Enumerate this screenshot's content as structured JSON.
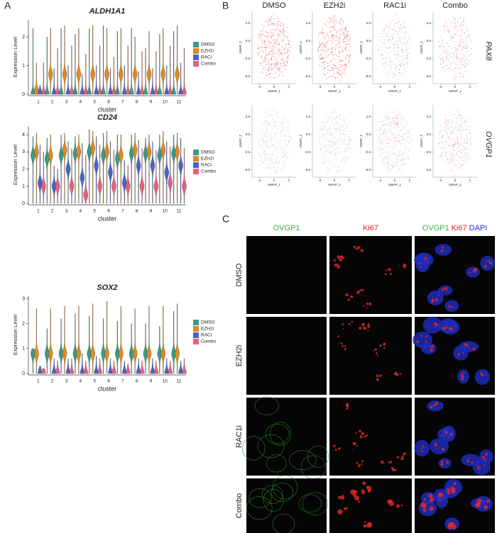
{
  "panel_labels": [
    "A",
    "B",
    "C"
  ],
  "chart_data": [
    {
      "type": "violin",
      "title": "ALDH1A1",
      "xlabel": "cluster",
      "ylabel": "Expression Level",
      "categories": [
        "1",
        "2",
        "3",
        "4",
        "5",
        "6",
        "7",
        "8",
        "9",
        "10",
        "11"
      ],
      "ylim": [
        0,
        2.6
      ],
      "yticks": [
        0,
        1,
        2
      ],
      "series": [
        {
          "name": "DMSO",
          "color": "#3a9a88",
          "values": [
            2.3,
            2.0,
            2.3,
            2.1,
            2.3,
            2.4,
            2.2,
            2.3,
            1.6,
            2.1,
            2.2
          ],
          "mode": [
            0,
            0,
            0,
            0,
            0,
            0,
            0,
            0,
            0,
            0,
            0
          ]
        },
        {
          "name": "EZH2i",
          "color": "#e08a1e",
          "values": [
            1.1,
            2.3,
            2.4,
            2.3,
            2.4,
            2.3,
            2.3,
            2.0,
            2.2,
            2.3,
            2.4
          ],
          "mode": [
            0.1,
            0.7,
            0.7,
            0.7,
            0.7,
            0.7,
            0.7,
            0.7,
            0.7,
            0.7,
            0.7
          ]
        },
        {
          "name": "RACi",
          "color": "#4664c8",
          "values": [
            0.3,
            0.9,
            1.0,
            0.7,
            1.0,
            0.9,
            1.0,
            0.8,
            0.9,
            1.0,
            1.1
          ],
          "mode": [
            0,
            0,
            0,
            0,
            0,
            0,
            0,
            0,
            0,
            0,
            0
          ]
        },
        {
          "name": "Combo",
          "color": "#e8607e",
          "values": [
            1.1,
            1.6,
            1.7,
            1.4,
            1.7,
            1.3,
            1.7,
            1.5,
            1.5,
            1.7,
            1.6
          ],
          "mode": [
            0,
            0,
            0,
            0,
            0,
            0,
            0,
            0,
            0,
            0,
            0
          ]
        }
      ]
    },
    {
      "type": "violin",
      "title": "CD24",
      "xlabel": "cluster",
      "ylabel": "Expression Level",
      "categories": [
        "1",
        "2",
        "3",
        "4",
        "5",
        "6",
        "7",
        "8",
        "9",
        "10",
        "11"
      ],
      "ylim": [
        0,
        4.5
      ],
      "yticks": [
        0,
        1,
        2,
        3,
        4
      ],
      "series": [
        {
          "name": "DMSO",
          "color": "#3a9a88",
          "values": [
            3.9,
            3.8,
            4.0,
            3.9,
            4.3,
            4.1,
            4.0,
            4.0,
            3.8,
            4.0,
            4.0
          ],
          "mode": [
            2.8,
            2.6,
            2.8,
            2.9,
            3.0,
            2.8,
            2.6,
            2.9,
            2.9,
            2.8,
            2.9
          ]
        },
        {
          "name": "EZH2i",
          "color": "#e08a1e",
          "values": [
            4.1,
            4.0,
            4.1,
            4.0,
            4.2,
            4.2,
            4.0,
            4.1,
            4.0,
            4.2,
            4.1
          ],
          "mode": [
            3.0,
            2.8,
            3.1,
            3.0,
            3.2,
            3.0,
            2.8,
            3.1,
            3.0,
            3.1,
            3.0
          ]
        },
        {
          "name": "RACi",
          "color": "#4664c8",
          "values": [
            3.4,
            2.2,
            3.6,
            3.5,
            3.9,
            3.6,
            2.5,
            3.7,
            3.6,
            3.6,
            3.8
          ],
          "mode": [
            1.2,
            1.0,
            2.0,
            1.5,
            2.2,
            1.8,
            1.2,
            2.2,
            2.2,
            1.8,
            2.2
          ]
        },
        {
          "name": "Combo",
          "color": "#e8607e",
          "values": [
            3.0,
            2.0,
            3.2,
            2.8,
            3.4,
            3.1,
            2.2,
            3.2,
            3.1,
            3.3,
            3.2
          ],
          "mode": [
            1.0,
            1.0,
            1.0,
            0.5,
            1.0,
            1.0,
            1.0,
            1.0,
            1.0,
            1.2,
            1.0
          ]
        }
      ]
    },
    {
      "type": "violin",
      "title": "SOX2",
      "xlabel": "cluster",
      "ylabel": "Expression Level",
      "categories": [
        "1",
        "2",
        "3",
        "4",
        "5",
        "6",
        "7",
        "8",
        "9",
        "10",
        "11"
      ],
      "ylim": [
        0,
        3.1
      ],
      "yticks": [
        0,
        1,
        2,
        3
      ],
      "series": [
        {
          "name": "DMSO",
          "color": "#3a9a88",
          "values": [
            1.0,
            1.8,
            2.2,
            2.4,
            2.3,
            2.2,
            2.1,
            2.0,
            2.0,
            1.9,
            2.5
          ],
          "mode": [
            0.8,
            0.8,
            0.8,
            0.8,
            0.8,
            0.8,
            0.8,
            0.8,
            0.8,
            0.8,
            0.8
          ]
        },
        {
          "name": "EZH2i",
          "color": "#e08a1e",
          "values": [
            2.6,
            2.6,
            2.7,
            2.7,
            2.8,
            2.9,
            2.7,
            2.6,
            2.7,
            2.7,
            2.8
          ],
          "mode": [
            0.8,
            0.8,
            0.8,
            0.8,
            0.8,
            0.8,
            0.8,
            0.8,
            0.8,
            0.8,
            0.8
          ]
        },
        {
          "name": "RACi",
          "color": "#4664c8",
          "values": [
            0.3,
            0.6,
            0.6,
            0.8,
            0.7,
            0.6,
            0.5,
            0.6,
            0.6,
            0.6,
            0.5
          ],
          "mode": [
            0,
            0,
            0,
            0,
            0,
            0,
            0,
            0,
            0,
            0,
            0
          ]
        },
        {
          "name": "Combo",
          "color": "#e8607e",
          "values": [
            0.2,
            0.5,
            0.6,
            0.5,
            0.6,
            0.5,
            0.4,
            0.5,
            0.5,
            0.5,
            0.6
          ],
          "mode": [
            0,
            0,
            0,
            0,
            0,
            0,
            0,
            0,
            0,
            0,
            0
          ]
        }
      ]
    }
  ],
  "umap": {
    "columns": [
      "DMSO",
      "EZH2i",
      "RAC1i",
      "Combo"
    ],
    "rows": [
      "PAX8",
      "OVGP1"
    ],
    "xlabel": "UMAP_1",
    "ylabel": "UMAP_2",
    "xlim": [
      -6,
      6
    ],
    "xticks": [
      -4,
      0,
      4
    ],
    "ylim": [
      -6,
      4
    ],
    "yticks": [
      {
        "value": -5,
        "label": "-5.0"
      },
      {
        "value": -2.5,
        "label": "-2.5"
      },
      {
        "value": 0,
        "label": "0.0"
      },
      {
        "value": 2.5,
        "label": "2.5"
      }
    ]
  },
  "imaging": {
    "columns": [
      "OVGP1",
      "Ki67"
    ],
    "merge_label": [
      "OVGP1",
      "Ki67",
      "DAPI"
    ],
    "rows": [
      "DMSO",
      "EZH2i",
      "RAC1i",
      "Combo"
    ]
  }
}
